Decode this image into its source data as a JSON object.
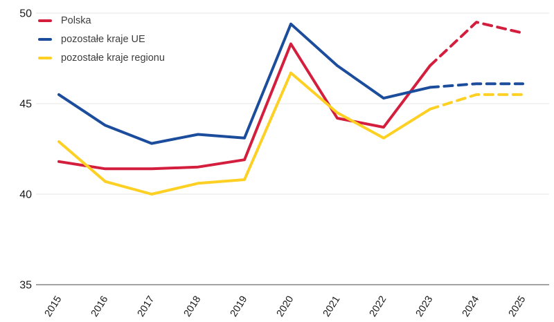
{
  "chart_data": {
    "type": "line",
    "title": "",
    "xlabel": "",
    "ylabel": "",
    "x": [
      2015,
      2016,
      2017,
      2018,
      2019,
      2020,
      2021,
      2022,
      2023,
      2024,
      2025
    ],
    "series": [
      {
        "name": "Polska",
        "color": "#d41e3e",
        "values": [
          41.8,
          41.4,
          41.4,
          41.5,
          41.9,
          48.3,
          44.2,
          43.7,
          47.1,
          49.5,
          48.9
        ]
      },
      {
        "name": "pozostałe kraje UE",
        "color": "#1b4d9c",
        "values": [
          45.5,
          43.8,
          42.8,
          43.3,
          43.1,
          49.4,
          47.1,
          45.3,
          45.9,
          46.1,
          46.1
        ]
      },
      {
        "name": "pozostałe kraje regionu",
        "color": "#fdd023",
        "values": [
          42.9,
          40.7,
          40.0,
          40.6,
          40.8,
          46.7,
          44.5,
          43.1,
          44.7,
          45.5,
          45.5
        ]
      }
    ],
    "ylim": [
      35,
      50
    ],
    "yticks": [
      35,
      40,
      45,
      50
    ],
    "grid": "horizontal gridlines at 40, 45, 50; solid darker axis line at 35",
    "legend_position": "top-left inside plot",
    "forecast": {
      "note": "lines drawn dashed after this year (forecast period)",
      "solid_until_year": 2023,
      "dashed_years": [
        2024,
        2025
      ]
    },
    "colors": {
      "gridline": "#e9e9e9",
      "axis_line": "#a3a3a3",
      "tick_label": "#1a1a1a",
      "legend_text": "#3d3d3d",
      "background": "#ffffff"
    }
  }
}
